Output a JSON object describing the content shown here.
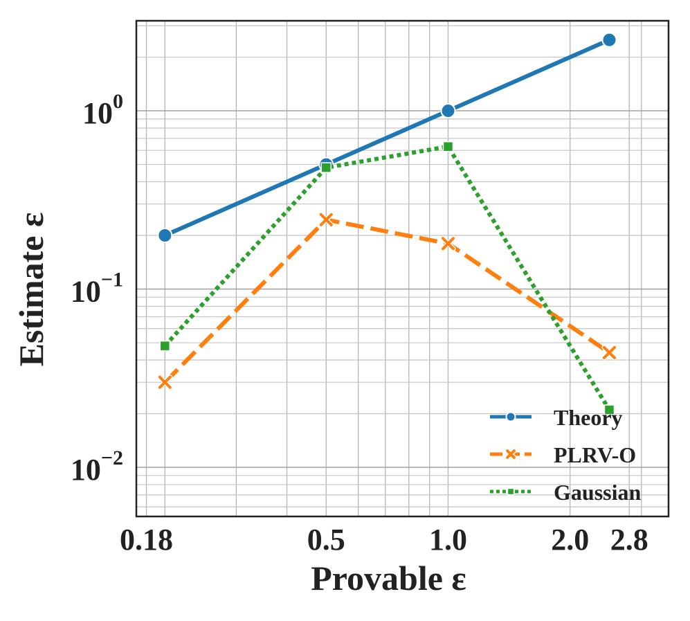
{
  "chart_data": {
    "type": "line",
    "xlabel": "Provable ε",
    "ylabel": "Estimate ε",
    "xscale": "log",
    "yscale": "log",
    "xlim": [
      0.17,
      3.5
    ],
    "ylim": [
      0.0053,
      3.2
    ],
    "x_ticks": [
      0.18,
      0.5,
      1.0,
      2.0,
      2.8
    ],
    "x_tick_labels": [
      "0.18",
      "0.5",
      "1.0",
      "2.0",
      "2.8"
    ],
    "y_ticks": [
      {
        "value": 1,
        "base": "10",
        "exp": "0"
      },
      {
        "value": 0.1,
        "base": "10",
        "exp": "−1"
      },
      {
        "value": 0.01,
        "base": "10",
        "exp": "−2"
      }
    ],
    "grid": true,
    "legend_position": "lower-right",
    "x": [
      0.2,
      0.5,
      1.0,
      2.5
    ],
    "series": [
      {
        "name": "Theory",
        "values": [
          0.2,
          0.5,
          1.0,
          2.5
        ],
        "color": "#1f77b4",
        "linestyle": "solid",
        "marker": "circle"
      },
      {
        "name": "PLRV-O",
        "values": [
          0.03,
          0.245,
          0.18,
          0.044
        ],
        "color": "#ff7f0e",
        "linestyle": "dashed",
        "marker": "x"
      },
      {
        "name": "Gaussian",
        "values": [
          0.048,
          0.48,
          0.63,
          0.021
        ],
        "color": "#2ca02c",
        "linestyle": "dotted",
        "marker": "square"
      }
    ]
  }
}
